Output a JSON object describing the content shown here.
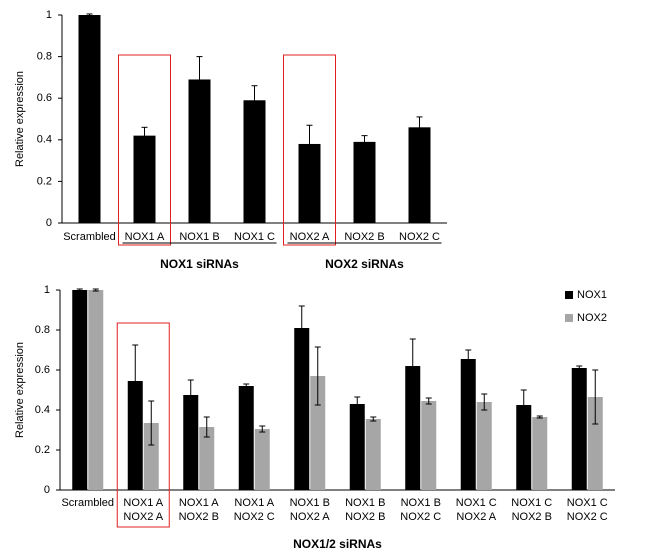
{
  "chart_data": [
    {
      "type": "bar",
      "y_label": "Relative expression",
      "categories": [
        [
          "Scrambled"
        ],
        [
          "NOX1 A"
        ],
        [
          "NOX1 B"
        ],
        [
          "NOX1 C"
        ],
        [
          "NOX2 A"
        ],
        [
          "NOX2 B"
        ],
        [
          "NOX2 C"
        ]
      ],
      "values": [
        1.0,
        0.42,
        0.69,
        0.59,
        0.38,
        0.39,
        0.46
      ],
      "errors": [
        0.005,
        0.04,
        0.11,
        0.07,
        0.09,
        0.03,
        0.05
      ],
      "color": "#000000",
      "ylim": [
        0,
        1
      ],
      "yticks": [
        0,
        0.2,
        0.4,
        0.6,
        0.8,
        1
      ],
      "groups": [
        {
          "label": "NOX1 siRNAs",
          "from": 1,
          "to": 3
        },
        {
          "label": "NOX2 siRNAs",
          "from": 4,
          "to": 6
        }
      ],
      "highlight": [
        1,
        4
      ],
      "highlight_color": "#e02020"
    },
    {
      "type": "grouped-bar",
      "y_label": "Relative expression",
      "x_label": "NOX1/2 siRNAs",
      "categories": [
        [
          "Scrambled"
        ],
        [
          "NOX1 A",
          "NOX2 A"
        ],
        [
          "NOX1 A",
          "NOX2 B"
        ],
        [
          "NOX1 A",
          "NOX2 C"
        ],
        [
          "NOX1 B",
          "NOX2 A"
        ],
        [
          "NOX1 B",
          "NOX2 B"
        ],
        [
          "NOX1 B",
          "NOX2 C"
        ],
        [
          "NOX1 C",
          "NOX2 A"
        ],
        [
          "NOX1 C",
          "NOX2 B"
        ],
        [
          "NOX1 C",
          "NOX2 C"
        ]
      ],
      "series": [
        {
          "name": "NOX1",
          "color": "#000000",
          "values": [
            1.0,
            0.545,
            0.475,
            0.52,
            0.81,
            0.43,
            0.62,
            0.655,
            0.425,
            0.61
          ],
          "errors": [
            0.005,
            0.18,
            0.075,
            0.01,
            0.11,
            0.035,
            0.135,
            0.045,
            0.075,
            0.01
          ]
        },
        {
          "name": "NOX2",
          "color": "#a6a6a6",
          "values": [
            1.0,
            0.335,
            0.315,
            0.305,
            0.57,
            0.355,
            0.445,
            0.44,
            0.365,
            0.465
          ],
          "errors": [
            0.005,
            0.11,
            0.05,
            0.015,
            0.145,
            0.01,
            0.015,
            0.04,
            0.005,
            0.135
          ]
        }
      ],
      "ylim": [
        0,
        1
      ],
      "yticks": [
        0,
        0.2,
        0.4,
        0.6,
        0.8,
        1
      ],
      "legend": "top-right",
      "highlight": [
        1
      ],
      "highlight_color": "#e02020"
    }
  ]
}
